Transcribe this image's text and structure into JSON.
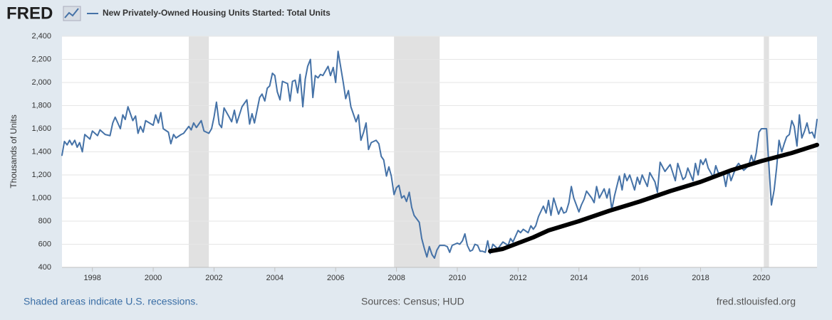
{
  "logo": "FRED",
  "chart_data": {
    "type": "line",
    "title": "New Privately-Owned Housing Units Started: Total Units",
    "y_label": "Thousands of Units",
    "footer_left": "Shaded areas indicate U.S. recessions.",
    "footer_center": "Sources: Census; HUD",
    "footer_right": "fred.stlouisfed.org",
    "xlim": [
      1997,
      2021.83
    ],
    "ylim": [
      400,
      2400
    ],
    "xticks": [
      1998,
      2000,
      2002,
      2004,
      2006,
      2008,
      2010,
      2012,
      2014,
      2016,
      2018,
      2020
    ],
    "yticks": [
      400,
      600,
      800,
      {
        "value": 1000,
        "label": "1,000"
      },
      {
        "value": 1200,
        "label": "1,200"
      },
      {
        "value": 1400,
        "label": "1,400"
      },
      {
        "value": 1600,
        "label": "1,600"
      },
      {
        "value": 1800,
        "label": "1,800"
      },
      {
        "value": 2000,
        "label": "2,000"
      },
      {
        "value": 2200,
        "label": "2,200"
      },
      {
        "value": 2400,
        "label": "2,400"
      }
    ],
    "grid": true,
    "recessions": [
      [
        2001.17,
        2001.83
      ],
      [
        2007.92,
        2009.42
      ],
      [
        2020.08,
        2020.25
      ]
    ],
    "series": [
      {
        "name": "New Privately-Owned Housing Units Started: Total Units",
        "color": "#4572a7",
        "x": [
          1997.0,
          1997.08,
          1997.17,
          1997.25,
          1997.33,
          1997.42,
          1997.5,
          1997.58,
          1997.67,
          1997.75,
          1997.92,
          1998.0,
          1998.17,
          1998.25,
          1998.42,
          1998.58,
          1998.67,
          1998.75,
          1998.92,
          1999.0,
          1999.08,
          1999.17,
          1999.33,
          1999.42,
          1999.5,
          1999.58,
          1999.67,
          1999.75,
          2000.0,
          2000.08,
          2000.17,
          2000.25,
          2000.33,
          2000.5,
          2000.58,
          2000.67,
          2000.75,
          2000.92,
          2001.0,
          2001.17,
          2001.25,
          2001.33,
          2001.42,
          2001.58,
          2001.67,
          2001.83,
          2001.92,
          2002.0,
          2002.08,
          2002.17,
          2002.25,
          2002.33,
          2002.5,
          2002.58,
          2002.67,
          2002.75,
          2002.92,
          2003.08,
          2003.17,
          2003.25,
          2003.33,
          2003.5,
          2003.58,
          2003.67,
          2003.75,
          2003.83,
          2003.92,
          2004.0,
          2004.08,
          2004.17,
          2004.25,
          2004.42,
          2004.5,
          2004.58,
          2004.67,
          2004.75,
          2004.83,
          2004.92,
          2005.0,
          2005.08,
          2005.17,
          2005.25,
          2005.33,
          2005.42,
          2005.5,
          2005.58,
          2005.75,
          2005.83,
          2005.92,
          2006.0,
          2006.08,
          2006.25,
          2006.33,
          2006.42,
          2006.5,
          2006.67,
          2006.75,
          2006.83,
          2006.92,
          2007.0,
          2007.08,
          2007.17,
          2007.33,
          2007.42,
          2007.5,
          2007.58,
          2007.67,
          2007.75,
          2007.83,
          2007.92,
          2008.0,
          2008.08,
          2008.17,
          2008.25,
          2008.33,
          2008.42,
          2008.5,
          2008.58,
          2008.75,
          2008.83,
          2008.92,
          2009.0,
          2009.08,
          2009.17,
          2009.25,
          2009.33,
          2009.42,
          2009.58,
          2009.67,
          2009.75,
          2009.83,
          2010.0,
          2010.08,
          2010.17,
          2010.25,
          2010.33,
          2010.42,
          2010.5,
          2010.58,
          2010.67,
          2010.75,
          2010.83,
          2010.92,
          2011.0,
          2011.08,
          2011.17,
          2011.33,
          2011.5,
          2011.67,
          2011.75,
          2011.83,
          2012.0,
          2012.08,
          2012.17,
          2012.33,
          2012.42,
          2012.5,
          2012.58,
          2012.67,
          2012.83,
          2012.92,
          2013.0,
          2013.08,
          2013.17,
          2013.33,
          2013.42,
          2013.5,
          2013.58,
          2013.67,
          2013.75,
          2013.83,
          2014.0,
          2014.08,
          2014.17,
          2014.25,
          2014.42,
          2014.5,
          2014.58,
          2014.67,
          2014.83,
          2014.92,
          2015.0,
          2015.08,
          2015.17,
          2015.33,
          2015.42,
          2015.5,
          2015.58,
          2015.67,
          2015.83,
          2015.92,
          2016.0,
          2016.08,
          2016.25,
          2016.33,
          2016.5,
          2016.58,
          2016.67,
          2016.83,
          2017.0,
          2017.17,
          2017.25,
          2017.42,
          2017.5,
          2017.58,
          2017.75,
          2017.83,
          2017.92,
          2018.0,
          2018.08,
          2018.17,
          2018.25,
          2018.42,
          2018.5,
          2018.58,
          2018.75,
          2018.83,
          2018.92,
          2019.0,
          2019.17,
          2019.25,
          2019.42,
          2019.58,
          2019.67,
          2019.75,
          2019.83,
          2019.92,
          2020.0,
          2020.17,
          2020.25,
          2020.33,
          2020.42,
          2020.5,
          2020.58,
          2020.67,
          2020.75,
          2020.83,
          2020.92,
          2021.0,
          2021.08,
          2021.17,
          2021.25,
          2021.33,
          2021.42,
          2021.5,
          2021.58,
          2021.67,
          2021.75,
          2021.83
        ],
        "values": [
          1370,
          1490,
          1460,
          1500,
          1460,
          1500,
          1440,
          1480,
          1400,
          1550,
          1510,
          1580,
          1540,
          1590,
          1550,
          1540,
          1650,
          1700,
          1600,
          1720,
          1680,
          1790,
          1670,
          1710,
          1560,
          1620,
          1570,
          1670,
          1630,
          1720,
          1650,
          1740,
          1600,
          1570,
          1470,
          1550,
          1520,
          1550,
          1560,
          1620,
          1590,
          1650,
          1610,
          1670,
          1580,
          1560,
          1600,
          1700,
          1830,
          1640,
          1610,
          1780,
          1700,
          1660,
          1760,
          1650,
          1790,
          1850,
          1640,
          1730,
          1650,
          1870,
          1900,
          1840,
          1950,
          1970,
          2080,
          2060,
          1920,
          1850,
          2010,
          1990,
          1840,
          2010,
          2020,
          1910,
          2070,
          1790,
          2030,
          2140,
          2200,
          1870,
          2060,
          2040,
          2070,
          2060,
          2140,
          2060,
          2130,
          2000,
          2270,
          2000,
          1860,
          1930,
          1790,
          1660,
          1720,
          1500,
          1570,
          1650,
          1420,
          1480,
          1500,
          1470,
          1360,
          1330,
          1190,
          1270,
          1190,
          1030,
          1090,
          1110,
          1000,
          1020,
          970,
          1050,
          920,
          850,
          790,
          650,
          560,
          490,
          580,
          510,
          480,
          550,
          590,
          590,
          580,
          530,
          590,
          610,
          600,
          630,
          690,
          590,
          540,
          550,
          600,
          590,
          540,
          540,
          530,
          630,
          520,
          600,
          560,
          620,
          590,
          650,
          620,
          720,
          700,
          730,
          700,
          760,
          730,
          760,
          840,
          930,
          870,
          980,
          850,
          1000,
          860,
          920,
          870,
          880,
          960,
          1100,
          1000,
          880,
          940,
          990,
          1060,
          1000,
          960,
          1100,
          1000,
          1080,
          1000,
          1080,
          900,
          1020,
          1190,
          1070,
          1210,
          1150,
          1200,
          1070,
          1180,
          1120,
          1200,
          1100,
          1220,
          1140,
          1050,
          1310,
          1230,
          1290,
          1150,
          1300,
          1160,
          1180,
          1260,
          1150,
          1300,
          1200,
          1330,
          1290,
          1340,
          1260,
          1180,
          1280,
          1220,
          1210,
          1100,
          1240,
          1150,
          1270,
          1300,
          1240,
          1280,
          1370,
          1300,
          1390,
          1570,
          1600,
          1600,
          1270,
          940,
          1070,
          1260,
          1500,
          1400,
          1470,
          1530,
          1550,
          1670,
          1620,
          1450,
          1720,
          1520,
          1580,
          1650,
          1560,
          1570,
          1520,
          1680
        ]
      },
      {
        "color": "#000000",
        "x": [
          2011.08,
          2011.5,
          2012,
          2012.5,
          2013,
          2014,
          2015,
          2016,
          2017,
          2018,
          2019,
          2020,
          2021,
          2021.83
        ],
        "values": [
          540,
          560,
          610,
          660,
          720,
          800,
          890,
          970,
          1060,
          1140,
          1240,
          1320,
          1390,
          1460
        ]
      }
    ]
  }
}
